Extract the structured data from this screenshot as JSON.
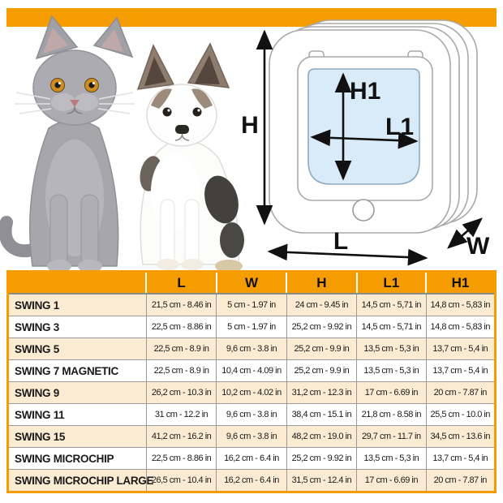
{
  "colors": {
    "accent_orange": "#F49C00",
    "row_tan": "#FAEBD2",
    "row_white": "#FFFFFF",
    "flap_blue": "#D9EAF8",
    "grid_grey": "#9A9A9A",
    "text_black": "#1A1A1A"
  },
  "hero_photo": {
    "description": "Grey kitten and chihuahua puppy sitting side by side on white background"
  },
  "diagram": {
    "labels": {
      "height": "H",
      "flap_height": "H1",
      "flap_width": "L1",
      "width": "L",
      "depth": "W"
    }
  },
  "size_table": {
    "columns": [
      "",
      "L",
      "W",
      "H",
      "L1",
      "H1"
    ],
    "rows": [
      [
        "SWING 1",
        "21,5 cm - 8.46 in",
        "5 cm - 1.97 in",
        "24 cm - 9.45 in",
        "14,5 cm - 5,71 in",
        "14,8 cm - 5,83 in"
      ],
      [
        "SWING 3",
        "22,5 cm - 8.86 in",
        "5 cm - 1.97 in",
        "25,2 cm - 9.92 in",
        "14,5 cm - 5,71 in",
        "14,8 cm - 5,83 in"
      ],
      [
        "SWING 5",
        "22,5 cm - 8.9 in",
        "9,6 cm - 3.8 in",
        "25,2 cm - 9.9 in",
        "13,5 cm - 5,3 in",
        "13,7 cm - 5,4 in"
      ],
      [
        "SWING 7 MAGNETIC",
        "22,5 cm - 8.9 in",
        "10,4 cm - 4.09 in",
        "25,2 cm - 9.9 in",
        "13,5 cm - 5,3 in",
        "13,7 cm - 5,4 in"
      ],
      [
        "SWING 9",
        "26,2 cm - 10.3 in",
        "10,2 cm - 4.02 in",
        "31,2 cm - 12.3 in",
        "17 cm - 6.69 in",
        "20 cm - 7.87 in"
      ],
      [
        "SWING 11",
        "31 cm - 12.2 in",
        "9,6 cm - 3.8 in",
        "38,4 cm - 15.1 in",
        "21,8 cm - 8.58 in",
        "25,5 cm - 10.0 in"
      ],
      [
        "SWING 15",
        "41,2 cm - 16.2 in",
        "9,6 cm - 3.8 in",
        "48,2 cm - 19.0 in",
        "29,7 cm - 11.7 in",
        "34,5 cm - 13.6 in"
      ],
      [
        "SWING MICROCHIP",
        "22,5 cm - 8.86 in",
        "16,2 cm - 6.4 in",
        "25,2 cm - 9.92 in",
        "13,5 cm - 5,3 in",
        "13,7 cm - 5,4 in"
      ],
      [
        "SWING MICROCHIP LARGE",
        "26,5 cm - 10.4 in",
        "16,2 cm - 6.4 in",
        "31,5 cm - 12.4 in",
        "17 cm - 6.69 in",
        "20 cm - 7.87 in"
      ]
    ]
  }
}
